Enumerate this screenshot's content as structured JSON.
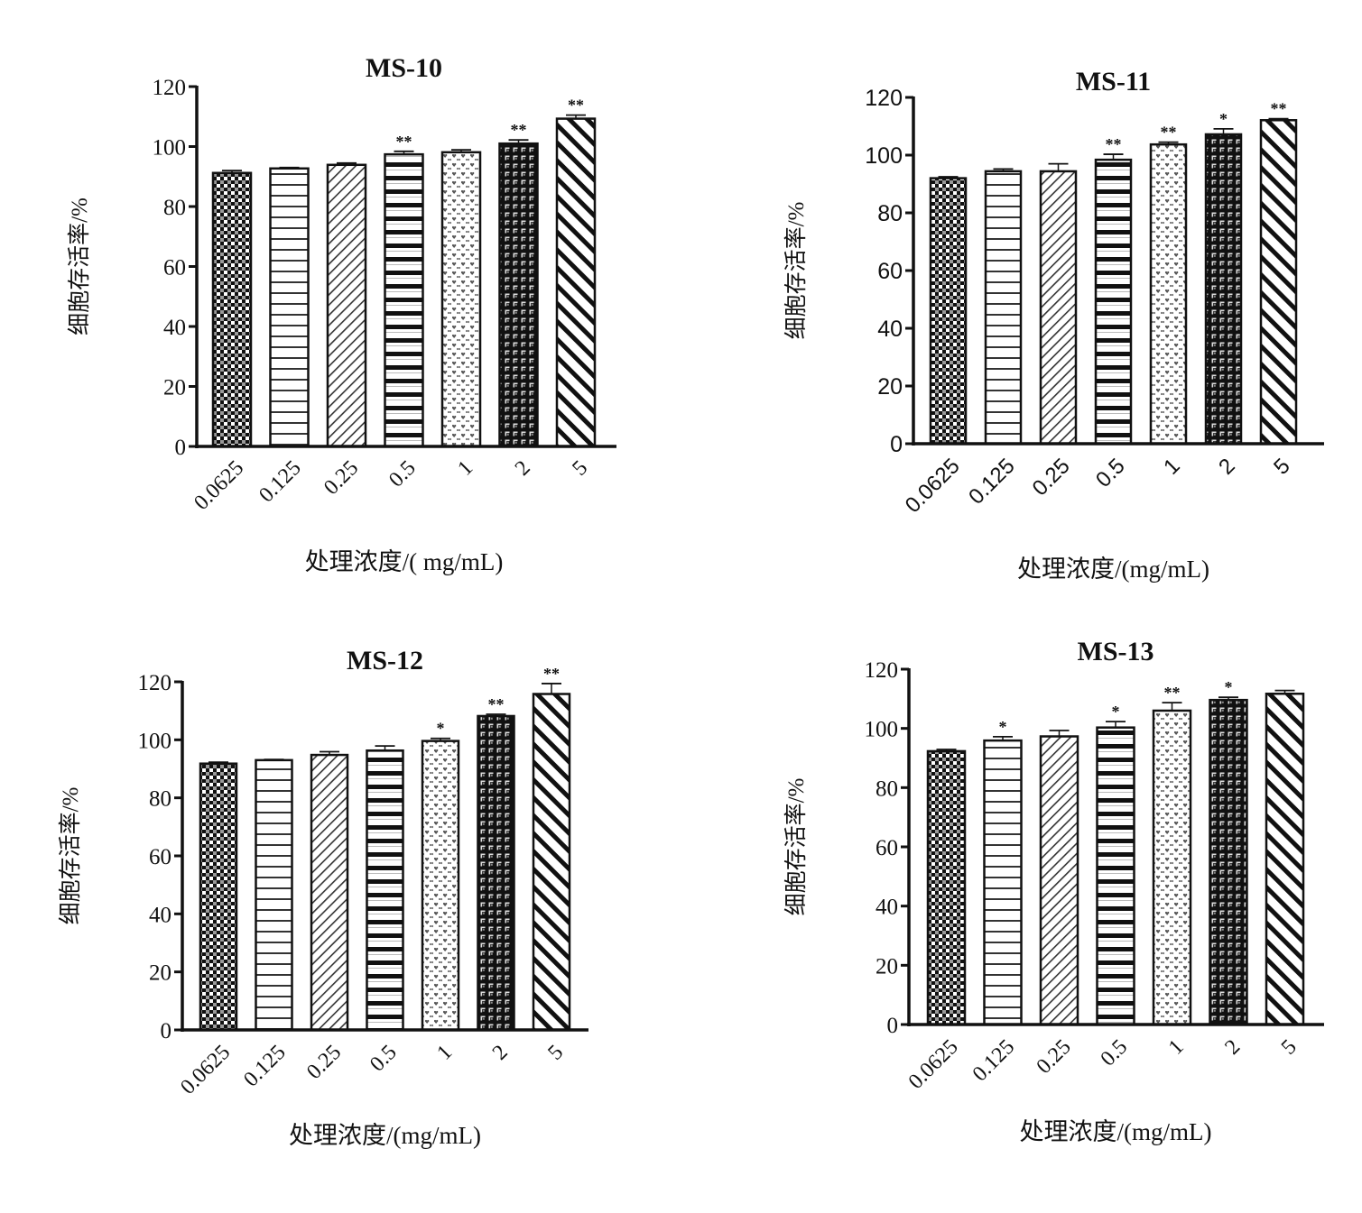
{
  "figure": {
    "panels_count": 4
  },
  "chart_data": [
    {
      "type": "bar",
      "title": "MS-10",
      "xlabel": "处理浓度/( mg/mL)",
      "ylabel": "细胞存活率/%",
      "categories": [
        "0.0625",
        "0.125",
        "0.25",
        "0.5",
        "1",
        "2",
        "5"
      ],
      "values": [
        91.2,
        92.7,
        93.9,
        97.4,
        98.1,
        101,
        109.3
      ],
      "errors": [
        0.8,
        0.3,
        0.6,
        1.0,
        0.8,
        1.2,
        1.2
      ],
      "significance": [
        "",
        "",
        "",
        "**",
        "",
        "**",
        "**"
      ],
      "ylim": [
        0,
        120
      ],
      "yticks": [
        0,
        20,
        40,
        60,
        80,
        100,
        120
      ],
      "grid": false,
      "tick_font": "serif"
    },
    {
      "type": "bar",
      "title": "MS-11",
      "xlabel": "处理浓度/(mg/mL)",
      "ylabel": "细胞存活率/%",
      "categories": [
        "0.0625",
        "0.125",
        "0.25",
        "0.5",
        "1",
        "2",
        "5"
      ],
      "values": [
        92.0,
        94.4,
        94.4,
        98.4,
        103.7,
        107.2,
        112.1
      ],
      "errors": [
        0.5,
        0.8,
        2.6,
        1.9,
        0.8,
        1.9,
        0.5
      ],
      "significance": [
        "",
        "",
        "",
        "**",
        "**",
        "*",
        "**"
      ],
      "ylim": [
        0,
        120
      ],
      "yticks": [
        0,
        20,
        40,
        60,
        80,
        100,
        120
      ],
      "grid": false,
      "tick_font": "sans"
    },
    {
      "type": "bar",
      "title": "MS-12",
      "xlabel": "处理浓度/(mg/mL)",
      "ylabel": "细胞存活率/%",
      "categories": [
        "0.0625",
        "0.125",
        "0.25",
        "0.5",
        "1",
        "2",
        "5"
      ],
      "values": [
        91.8,
        93.0,
        94.8,
        96.3,
        99.6,
        108.2,
        115.8
      ],
      "errors": [
        0.5,
        0.2,
        1.1,
        1.6,
        0.9,
        0.6,
        3.6
      ],
      "significance": [
        "",
        "",
        "",
        "",
        "*",
        "**",
        "**"
      ],
      "ylim": [
        0,
        120
      ],
      "yticks": [
        0,
        20,
        40,
        60,
        80,
        100,
        120
      ],
      "grid": false,
      "tick_font": "serif"
    },
    {
      "type": "bar",
      "title": "MS-13",
      "xlabel": "处理浓度/(mg/mL)",
      "ylabel": "细胞存活率/%",
      "categories": [
        "0.0625",
        "0.125",
        "0.25",
        "0.5",
        "1",
        "2",
        "5"
      ],
      "values": [
        92.3,
        95.9,
        97.3,
        100.3,
        106.0,
        109.6,
        111.7
      ],
      "errors": [
        0.6,
        1.3,
        2.0,
        2.0,
        2.7,
        0.9,
        1.1
      ],
      "significance": [
        "",
        "*",
        "",
        "*",
        "**",
        "*",
        ""
      ],
      "ylim": [
        0,
        120
      ],
      "yticks": [
        0,
        20,
        40,
        60,
        80,
        100,
        120
      ],
      "grid": false,
      "tick_font": "serif"
    }
  ],
  "styles": {
    "ink": "#111111",
    "background": "#ffffff",
    "bar_patterns": [
      "checker",
      "hlines-thin",
      "diag-thin",
      "hlines-thick",
      "hearts",
      "brick",
      "diag-thick"
    ]
  }
}
